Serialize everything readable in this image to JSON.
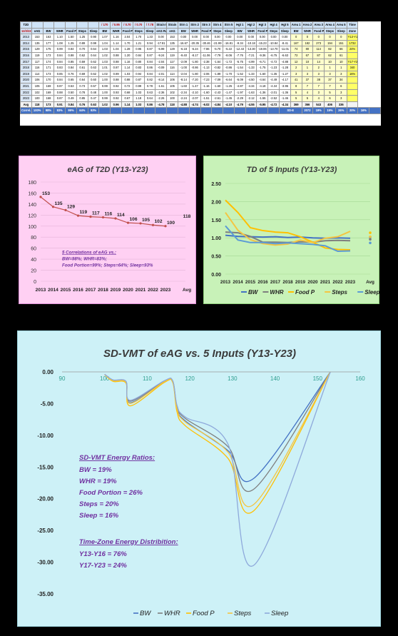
{
  "table": {
    "title_cell": "T2D",
    "date_cell": "12/2/22",
    "header_ratios": [
      "/ 170",
      "/ 0.95",
      "/ 0.70",
      "/ 0.70",
      "/ 7.78"
    ],
    "header_labels": [
      "Strain Rate",
      "Strain",
      "Strn 1",
      "Strn 2",
      "Strn 3",
      "Strn 4",
      "Strn 5",
      "Hgt 1",
      "Hgt 2",
      "Hgt 3",
      "Hgt 4",
      "Hgt 5",
      "Area 1",
      "Area 2",
      "Area 3",
      "Area 4",
      "Area 5",
      "Time"
    ],
    "columns": [
      "eAG",
      "BW",
      "WHR",
      "Food P",
      "Steps",
      "Sleep",
      "BW",
      "WHR",
      "Food P",
      "Steps",
      "Sleep",
      "eAG Rate",
      "eAG",
      "BW",
      "WHR",
      "Food P",
      "Steps",
      "Sleep",
      "BW",
      "WHR",
      "Food P",
      "Steps",
      "Sleep",
      "BW",
      "WHR",
      "Food P",
      "Steps",
      "Sleep",
      "Zone"
    ],
    "rows": [
      {
        "year": "2013",
        "cells": [
          "153",
          "163",
          "1.10",
          "1.50",
          "1.25",
          "0.90",
          "1.07",
          "1.16",
          "2.04",
          "1.70",
          "1.33",
          "0.00",
          "153",
          "0.00",
          "0.00",
          "0.00",
          "0.00",
          "0.00",
          "0.00",
          "0.00",
          "0.00",
          "0.00",
          "0.00",
          "0",
          "0",
          "0",
          "0",
          "0",
          "Y13-Y16"
        ]
      },
      {
        "year": "2014",
        "cells": [
          "135",
          "177",
          "1.08",
          "1.25",
          "0.89",
          "0.99",
          "1.04",
          "1.14",
          "1.70",
          "1.21",
          "0.94",
          "-17.81",
          "135",
          "-16.67",
          "-20.35",
          "-30.46",
          "-21.99",
          "-16.81",
          "-9.34",
          "-10.18",
          "-15.23",
          "-10.84",
          "-8.41",
          "167",
          "182",
          "273",
          "194",
          "151",
          "1732"
        ]
      },
      {
        "year": "2015",
        "cells": [
          "129",
          "175",
          "0.99",
          "0.84",
          "0.70",
          "0.64",
          "1.03",
          "1.04",
          "1.28",
          "0.95",
          "0.87",
          "-5.99",
          "129",
          "-6.18",
          "-6.24",
          "-7.86",
          "-5.70",
          "-5.22",
          "-12.43",
          "-13.30",
          "-19.06",
          "-13.70",
          "-11.01",
          "74",
          "80",
          "114",
          "82",
          "66",
          "24%"
        ]
      },
      {
        "year": "2016",
        "cells": [
          "119",
          "173",
          "0.84",
          "0.88",
          "0.62",
          "0.64",
          "1.02",
          "0.88",
          "1.20",
          "0.84",
          "0.87",
          "-9.24",
          "119",
          "-9.40",
          "-8.17",
          "-11.06",
          "-7.79",
          "-8.06",
          "-7.76",
          "-7.21",
          "-9.36",
          "-6.75",
          "-6.63",
          "72",
          "67",
          "87",
          "62",
          "61",
          ""
        ]
      },
      {
        "year": "2017",
        "cells": [
          "117",
          "174",
          "0.84",
          "0.85",
          "0.59",
          "0.62",
          "1.03",
          "0.88",
          "1.16",
          "0.80",
          "0.84",
          "-2.04",
          "117",
          "-2.09",
          "-1.80",
          "-2.38",
          "-1.64",
          "-1.72",
          "-5.75",
          "-4.99",
          "-6.71",
          "-4.72",
          "-4.88",
          "12",
          "10",
          "14",
          "10",
          "10",
          "Y17-Y23"
        ]
      },
      {
        "year": "2018",
        "cells": [
          "116",
          "171",
          "0.83",
          "0.84",
          "0.61",
          "0.63",
          "1.01",
          "0.87",
          "1.14",
          "0.83",
          "0.86",
          "-0.09",
          "116",
          "-1.00",
          "-0.86",
          "-1.13",
          "-0.82",
          "-0.86",
          "-1.54",
          "-1.33",
          "-1.75",
          "-1.23",
          "-1.28",
          "2",
          "1",
          "2",
          "1",
          "1",
          "340"
        ]
      },
      {
        "year": "2019",
        "cells": [
          "114",
          "173",
          "0.85",
          "0.76",
          "0.69",
          "0.62",
          "1.02",
          "0.89",
          "1.03",
          "0.94",
          "0.84",
          "-2.01",
          "114",
          "-2.04",
          "-1.80",
          "-2.06",
          "-1.89",
          "-1.70",
          "-1.52",
          "-1.33",
          "-1.60",
          "-1.35",
          "-1.27",
          "3",
          "3",
          "3",
          "3",
          "3",
          "16%"
        ]
      },
      {
        "year": "2020",
        "cells": [
          "106",
          "170",
          "0.84",
          "0.65",
          "0.64",
          "0.60",
          "1.00",
          "0.88",
          "0.88",
          "0.87",
          "0.82",
          "-8.14",
          "106",
          "-8.14",
          "-7.20",
          "-7.23",
          "-7.09",
          "-6.64",
          "-5.09",
          "-4.50",
          "-4.64",
          "-4.49",
          "-4.17",
          "41",
          "37",
          "38",
          "37",
          "34",
          ""
        ]
      },
      {
        "year": "2021",
        "cells": [
          "105",
          "169",
          "0.87",
          "0.53",
          "0.73",
          "0.57",
          "0.99",
          "0.92",
          "0.72",
          "0.99",
          "0.78",
          "-1.61",
          "105",
          "-1.60",
          "-1.47",
          "-1.16",
          "-1.60",
          "-1.25",
          "-4.87",
          "-4.34",
          "-4.18",
          "-4.34",
          "-3.95",
          "8",
          "7",
          "7",
          "7",
          "6",
          ""
        ]
      },
      {
        "year": "2022",
        "cells": [
          "102",
          "169",
          "0.88",
          "0.50",
          "0.78",
          "0.48",
          "1.00",
          "0.93",
          "0.68",
          "1.03",
          "0.63",
          "-2.36",
          "102",
          "-2.34",
          "-2.10",
          "-1.60",
          "-2.43",
          "-1.47",
          "-1.97",
          "-1.63",
          "-1.36",
          "-2.01",
          "-1.36",
          "5",
          "4",
          "3",
          "5",
          "3",
          ""
        ]
      },
      {
        "year": "2023",
        "cells": [
          "100",
          "168",
          "0.87",
          "0.49",
          "0.85",
          "0.47",
          "0.99",
          "0.92",
          "0.67",
          "1.18",
          "0.64",
          "-2.26",
          "100",
          "-2.24",
          "-2.07",
          "-1.51",
          "-2.61",
          "-1.45",
          "-2.29",
          "-2.12",
          "-1.55",
          "-2.52",
          "-1.46",
          "5",
          "5",
          "4",
          "6",
          "3",
          ""
        ]
      }
    ],
    "avg_row": {
      "label": "Avg",
      "cells": [
        "118",
        "173",
        "0.91",
        "0.84",
        "0.76",
        "0.63",
        "1.02",
        "0.96",
        "1.14",
        "1.03",
        "0.86",
        "-4.78",
        "118",
        "-4.88",
        "-4.74",
        "-6.02",
        "-4.84",
        "-4.10",
        "-4.79",
        "-4.55",
        "-5.95",
        "-4.72",
        "-4.34",
        "369",
        "366",
        "543",
        "406",
        "336",
        ""
      ]
    },
    "corr_row": {
      "label": "Correl.",
      "cells": [
        "100%",
        "98%",
        "83%",
        "99%",
        "64%",
        "93%"
      ],
      "sde_label": "SD-E",
      "sde_values": [
        "2072",
        "19%",
        "19%",
        "26%",
        "20%",
        "16%"
      ]
    }
  },
  "chart_data": [
    {
      "type": "line",
      "title": "eAG of T2D  (Y13-Y23)",
      "categories": [
        "2013",
        "2014",
        "2015",
        "2016",
        "2017",
        "2018",
        "2019",
        "2020",
        "2021",
        "2022",
        "2023"
      ],
      "series": [
        {
          "values": [
            153,
            135,
            129,
            119,
            117,
            116,
            114,
            106,
            105,
            102,
            100
          ]
        }
      ],
      "avg_label": "Avg",
      "avg_value": 118,
      "ylim": [
        0,
        180
      ],
      "yticks": [
        0,
        20,
        40,
        60,
        80,
        100,
        120,
        140,
        160,
        180
      ],
      "annotation": [
        "5 Correlations of eAG vs.:",
        "BW=98%;  WHR=83%;",
        "Food Portion=99%;  Steps=64%;  Sleep=93%"
      ],
      "colors": {
        "line": "#c0504d",
        "annotation": "#7030a0",
        "steps_note": "#c00000"
      }
    },
    {
      "type": "line",
      "title": "TD of 5 Inputs  (Y13-Y23)",
      "categories": [
        "2013",
        "2014",
        "2015",
        "2016",
        "2017",
        "2018",
        "2019",
        "2020",
        "2021",
        "2022",
        "2023"
      ],
      "avg_label": "Avg",
      "ylim": [
        0,
        2.5
      ],
      "yticks": [
        0.0,
        0.5,
        1.0,
        1.5,
        2.0,
        2.5
      ],
      "series": [
        {
          "name": "BW",
          "color": "#4472c4",
          "values": [
            1.07,
            1.04,
            1.03,
            1.02,
            1.03,
            1.01,
            1.02,
            1.0,
            0.99,
            1.0,
            0.99
          ],
          "avg": 1.02
        },
        {
          "name": "WHR",
          "color": "#7f7f7f",
          "values": [
            1.16,
            1.14,
            1.04,
            0.88,
            0.88,
            0.87,
            0.89,
            0.88,
            0.92,
            0.93,
            0.92
          ],
          "avg": 0.96
        },
        {
          "name": "Food P",
          "color": "#ffc000",
          "values": [
            2.04,
            1.7,
            1.28,
            1.2,
            1.16,
            1.14,
            1.03,
            0.88,
            0.72,
            0.68,
            0.67
          ],
          "avg": 1.14
        },
        {
          "name": "Steps",
          "color": "#f4c542",
          "values": [
            1.7,
            1.21,
            0.95,
            0.84,
            0.8,
            0.83,
            0.94,
            0.87,
            0.99,
            1.03,
            1.18
          ],
          "avg": 1.03
        },
        {
          "name": "Sleep",
          "color": "#5b9bd5",
          "values": [
            1.33,
            0.94,
            0.87,
            0.87,
            0.84,
            0.86,
            0.84,
            0.82,
            0.78,
            0.63,
            0.64
          ],
          "avg": 0.86
        }
      ]
    },
    {
      "type": "line",
      "title": "SD-VMT of eAG vs. 5 Inputs  (Y13-Y23)",
      "xlim": [
        90,
        160
      ],
      "xticks": [
        90,
        100,
        110,
        120,
        130,
        140,
        150,
        160
      ],
      "ylim": [
        -35,
        0
      ],
      "yticks": [
        "0.00",
        "-5.00",
        "-10.00",
        "-15.00",
        "-20.00",
        "-25.00",
        "-30.00",
        "-35.00"
      ],
      "x": [
        100,
        102,
        105,
        106,
        114,
        116,
        117,
        119,
        129,
        135,
        153
      ],
      "series": [
        {
          "name": "BW",
          "color": "#4472c4",
          "values": [
            -0.4,
            -1.37,
            -1.6,
            -4.87,
            -1.52,
            -1.54,
            -5.75,
            -7.76,
            -12.43,
            -16.8,
            0.0
          ]
        },
        {
          "name": "WHR",
          "color": "#7f7f7f",
          "values": [
            -0.38,
            -1.3,
            -1.52,
            -4.63,
            -1.44,
            -1.46,
            -5.46,
            -7.37,
            -11.81,
            -18.5,
            0.0
          ]
        },
        {
          "name": "Food P",
          "color": "#ffc000",
          "values": [
            -0.44,
            -1.5,
            -1.75,
            -5.35,
            -1.67,
            -1.69,
            -6.32,
            -8.53,
            -13.67,
            -21.9,
            0.0
          ]
        },
        {
          "name": "Steps",
          "color": "#f4c542",
          "values": [
            -0.41,
            -1.4,
            -1.63,
            -4.97,
            -1.55,
            -1.57,
            -5.87,
            -7.92,
            -12.68,
            -20.9,
            0.0
          ]
        },
        {
          "name": "Sleep",
          "color": "#8ea9db",
          "values": [
            -0.37,
            -1.26,
            -1.47,
            -4.48,
            -1.4,
            -1.42,
            -5.29,
            -7.14,
            -11.44,
            -30.5,
            0.0
          ]
        }
      ],
      "annotations": {
        "energy_title": "SD-VMT Energy Ratios:",
        "energy_lines": [
          "BW = 19%",
          "WHR = 19%",
          "Food Portion = 26%",
          "Steps = 20%",
          "Sleep = 16%"
        ],
        "zone_title": "Time-Zone Energy Distribition:",
        "zone_lines": [
          "Y13-Y16 = 76%",
          "Y17-Y23 = 24%"
        ],
        "color": "#7030a0"
      }
    }
  ]
}
